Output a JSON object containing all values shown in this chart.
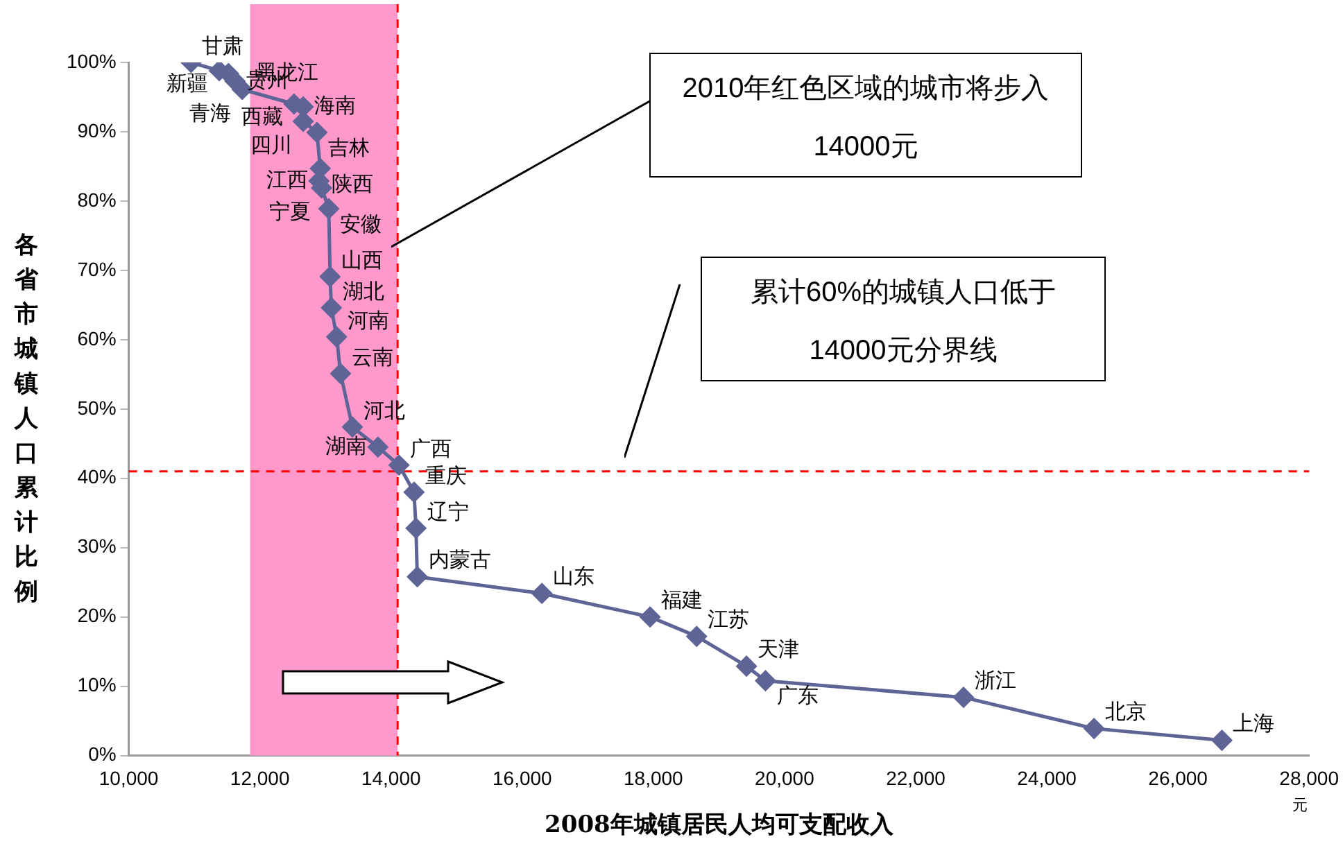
{
  "chart_data": {
    "type": "line",
    "xlabel": "2008年城镇居民人均可支配收入",
    "ylabel": "各省市城镇人口累计比例",
    "x": [
      10950,
      11380,
      11520,
      11620,
      11730,
      12520,
      12660,
      12660,
      12870,
      12920,
      12900,
      12940,
      13050,
      13070,
      13090,
      13170,
      13230,
      13410,
      13800,
      14120,
      14350,
      14380,
      14400,
      16300,
      17950,
      18660,
      19420,
      19710,
      22730,
      24720,
      26670
    ],
    "series": [
      {
        "color": "#5f6496",
        "values": [
          100,
          98.8,
          98.4,
          97.3,
          96.1,
          94.0,
          93.6,
          91.5,
          89.9,
          84.7,
          82.9,
          81.9,
          78.9,
          69.1,
          64.6,
          60.4,
          55.1,
          47.4,
          44.5,
          41.9,
          38.0,
          32.8,
          25.8,
          23.4,
          20.0,
          17.2,
          12.9,
          10.8,
          8.4,
          3.9,
          2.2
        ]
      }
    ],
    "xlim": [
      10000,
      28000
    ],
    "xticks": [
      {
        "value": 10000,
        "label": "10,000"
      },
      {
        "value": 12000,
        "label": "12,000"
      },
      {
        "value": 14000,
        "label": "14,000"
      },
      {
        "value": 16000,
        "label": "16,000"
      },
      {
        "value": 18000,
        "label": "18,000"
      },
      {
        "value": 20000,
        "label": "20,000"
      },
      {
        "value": 22000,
        "label": "22,000"
      },
      {
        "value": 24000,
        "label": "24,000"
      },
      {
        "value": 26000,
        "label": "26,000"
      },
      {
        "value": 28000,
        "label": "28,000"
      }
    ],
    "ylim": [
      0,
      100
    ],
    "yticks": [
      {
        "value": 0,
        "label": "0%"
      },
      {
        "value": 10,
        "label": "10%"
      },
      {
        "value": 20,
        "label": "20%"
      },
      {
        "value": 30,
        "label": "30%"
      },
      {
        "value": 40,
        "label": "40%"
      },
      {
        "value": 50,
        "label": "50%"
      },
      {
        "value": 60,
        "label": "60%"
      },
      {
        "value": 70,
        "label": "70%"
      },
      {
        "value": 80,
        "label": "80%"
      },
      {
        "value": 90,
        "label": "90%"
      },
      {
        "value": 100,
        "label": "100%"
      }
    ],
    "bands": [
      {
        "axis": "x",
        "from": 11850,
        "to": 14100,
        "color": "#ff99cc"
      }
    ],
    "ref_lines": [
      {
        "axis": "x",
        "value": 14100,
        "color": "#ff0000",
        "line_style": "dashed"
      },
      {
        "axis": "y",
        "value": 41,
        "color": "#ff0000",
        "line_style": "dashed"
      }
    ],
    "annotations": [
      "2010年红色区域的城市将步入14000元",
      "累计60%的城镇人口低于14000元分界线",
      "元",
      {
        "text": "甘肃",
        "x": 10950,
        "y": 100
      },
      {
        "text": "新疆",
        "x": 11380,
        "y": 98.8
      },
      {
        "text": "黑龙江",
        "x": 11520,
        "y": 98.4
      },
      {
        "text": "贵州",
        "x": 11620,
        "y": 97.3
      },
      {
        "text": "青海",
        "x": 11730,
        "y": 96.1
      },
      {
        "text": "西藏",
        "x": 12520,
        "y": 94.0
      },
      {
        "text": "海南",
        "x": 12660,
        "y": 93.6
      },
      {
        "text": "四川",
        "x": 12660,
        "y": 91.5
      },
      {
        "text": "吉林",
        "x": 12870,
        "y": 89.9
      },
      {
        "text": "陕西",
        "x": 12920,
        "y": 84.7
      },
      {
        "text": "江西",
        "x": 12900,
        "y": 82.9
      },
      {
        "text": "宁夏",
        "x": 12940,
        "y": 81.9
      },
      {
        "text": "安徽",
        "x": 13050,
        "y": 78.9
      },
      {
        "text": "山西",
        "x": 13070,
        "y": 69.1
      },
      {
        "text": "湖北",
        "x": 13090,
        "y": 64.6
      },
      {
        "text": "河南",
        "x": 13170,
        "y": 60.4
      },
      {
        "text": "云南",
        "x": 13230,
        "y": 55.1
      },
      {
        "text": "河北",
        "x": 13410,
        "y": 47.4
      },
      {
        "text": "湖南",
        "x": 13800,
        "y": 44.5
      },
      {
        "text": "广西",
        "x": 14120,
        "y": 41.9
      },
      {
        "text": "重庆",
        "x": 14350,
        "y": 38.0
      },
      {
        "text": "辽宁",
        "x": 14380,
        "y": 32.8
      },
      {
        "text": "内蒙古",
        "x": 14400,
        "y": 25.8
      },
      {
        "text": "山东",
        "x": 16300,
        "y": 23.4
      },
      {
        "text": "福建",
        "x": 17950,
        "y": 20.0
      },
      {
        "text": "江苏",
        "x": 18660,
        "y": 17.2
      },
      {
        "text": "天津",
        "x": 19420,
        "y": 12.9
      },
      {
        "text": "广东",
        "x": 19710,
        "y": 10.8
      },
      {
        "text": "浙江",
        "x": 22730,
        "y": 8.4
      },
      {
        "text": "北京",
        "x": 24720,
        "y": 3.9
      },
      {
        "text": "上海",
        "x": 26670,
        "y": 2.2
      }
    ],
    "grid": false,
    "legend": false,
    "marker": "diamond",
    "line_style": "solid"
  }
}
